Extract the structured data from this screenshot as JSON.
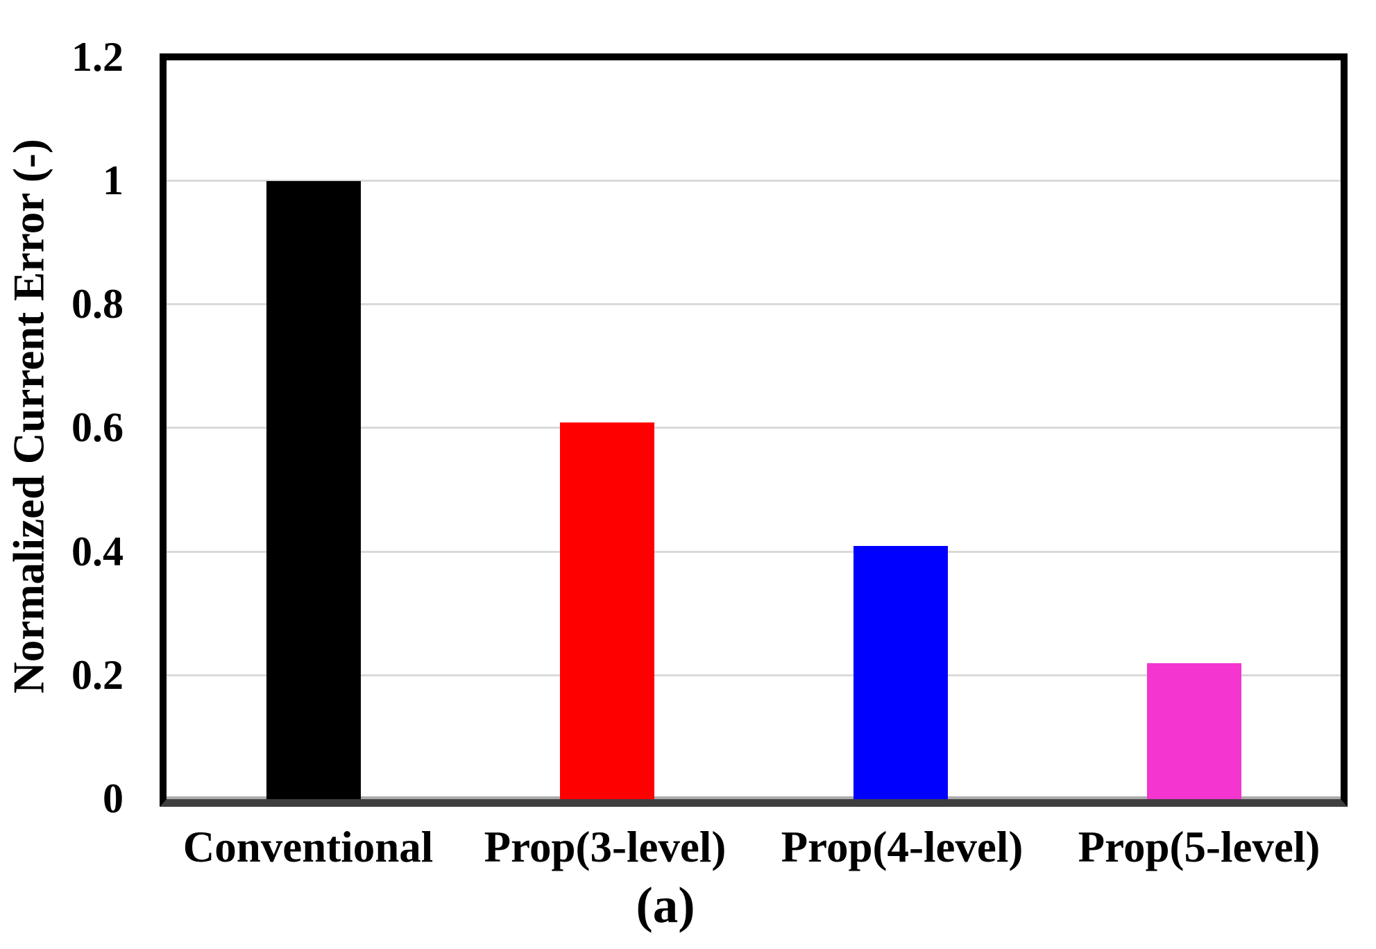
{
  "figure": {
    "caption": "(a)"
  },
  "chart_data": {
    "type": "bar",
    "title": "",
    "xlabel": "",
    "ylabel": "Normalized Current Error (-)",
    "categories": [
      "Conventional",
      "Prop(3-level)",
      "Prop(4-level)",
      "Prop(5-level)"
    ],
    "values": [
      1.0,
      0.61,
      0.41,
      0.22
    ],
    "bar_colors": [
      "#000000",
      "#FF0000",
      "#0000FF",
      "#F435CF"
    ],
    "ylim": [
      0,
      1.2
    ],
    "yticks": [
      {
        "label": "0",
        "value": 0
      },
      {
        "label": "0.2",
        "value": 0.2
      },
      {
        "label": "0.4",
        "value": 0.4
      },
      {
        "label": "0.6",
        "value": 0.6
      },
      {
        "label": "0.8",
        "value": 0.8
      },
      {
        "label": "1",
        "value": 1
      },
      {
        "label": "1.2",
        "value": 1.2
      }
    ],
    "grid": "horizontal",
    "gridline_values": [
      0.2,
      0.4,
      0.6,
      0.8,
      1.0
    ],
    "grid_color": "#D9D9D9",
    "axis_line_color": "#3F3F3F",
    "plot_border_color": "#000000",
    "legend": "none"
  }
}
